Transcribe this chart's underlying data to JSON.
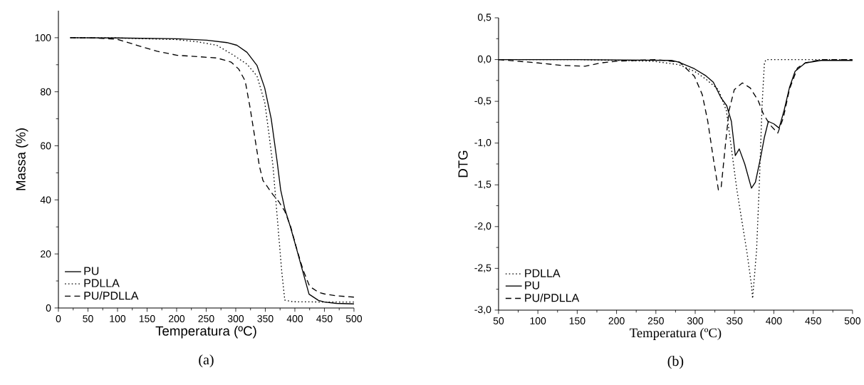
{
  "chart_data": [
    {
      "type": "line",
      "xlabel": "Temperatura (ºC)",
      "ylabel": "Massa (%)",
      "annotations": [
        "(a)"
      ],
      "xlim": [
        0,
        500
      ],
      "ylim": [
        0,
        110
      ],
      "xticks": [
        0,
        50,
        100,
        150,
        200,
        250,
        300,
        350,
        400,
        450,
        500
      ],
      "yticks": [
        0,
        20,
        40,
        60,
        80,
        100
      ],
      "legend": "bottom left",
      "marker": "none",
      "series": [
        {
          "name": "PU",
          "color": "#000000",
          "line_style": "solid",
          "x": [
            20,
            100,
            200,
            251,
            285,
            302,
            319,
            336,
            349,
            360,
            370,
            376,
            383,
            393,
            403,
            414,
            424,
            440,
            450,
            470,
            500
          ],
          "values": [
            100,
            99.9,
            99.6,
            99.1,
            98.2,
            97.2,
            94.6,
            89.7,
            81.4,
            70,
            54.2,
            43.7,
            36.7,
            29.6,
            21.8,
            13,
            5.1,
            2.8,
            2.2,
            1.7,
            1.5
          ]
        },
        {
          "name": "PDLLA",
          "color": "#000000",
          "line_style": "dotted",
          "x": [
            20,
            100,
            200,
            235,
            268,
            295,
            319,
            336,
            349,
            356,
            363,
            368,
            373,
            378,
            383,
            397,
            450,
            500
          ],
          "values": [
            100,
            99.9,
            99.3,
            98.5,
            97.2,
            93.7,
            90.2,
            85.8,
            76.1,
            64.7,
            52.5,
            39.3,
            26.1,
            13,
            2.9,
            2.3,
            2.2,
            2.2
          ]
        },
        {
          "name": "PU/PDLLA",
          "color": "#000000",
          "line_style": "dashed",
          "x": [
            20,
            60,
            100,
            133,
            167,
            201,
            235,
            268,
            292,
            305,
            316,
            324,
            333,
            340,
            346,
            363,
            373,
            383,
            393,
            403,
            414,
            425,
            440,
            450,
            470,
            500
          ],
          "values": [
            100,
            99.9,
            99.4,
            97.2,
            95,
            93.5,
            93,
            92.5,
            91,
            88.4,
            84,
            74.4,
            62.1,
            52.5,
            47.2,
            41.9,
            39.3,
            35.8,
            30,
            22,
            14,
            8,
            5.8,
            5.2,
            4.5,
            4
          ]
        }
      ]
    },
    {
      "type": "line",
      "xlabel": "Temperatura (ºC)",
      "ylabel": "DTG",
      "annotations": [
        "(b)"
      ],
      "xlim": [
        50,
        500
      ],
      "ylim": [
        -3.0,
        0.5
      ],
      "xticks": [
        50,
        100,
        150,
        200,
        250,
        300,
        350,
        400,
        450,
        500
      ],
      "yticks": [
        {
          "value": -3.0,
          "label": "-3,0"
        },
        {
          "value": -2.5,
          "label": "-2,5"
        },
        {
          "value": -2.0,
          "label": "-2,0"
        },
        {
          "value": -1.5,
          "label": "-1,5"
        },
        {
          "value": -1.0,
          "label": "-1,0"
        },
        {
          "value": -0.5,
          "label": "-0,5"
        },
        {
          "value": 0.0,
          "label": "0,0"
        },
        {
          "value": 0.5,
          "label": "0,5"
        }
      ],
      "legend": "bottom left",
      "marker": "none",
      "series": [
        {
          "name": "PDLLA",
          "color": "#000000",
          "line_style": "dotted",
          "x": [
            50,
            150,
            200,
            246,
            279,
            299,
            313,
            329.5,
            339.6,
            346,
            353,
            360,
            366,
            371.5,
            373,
            378,
            381.5,
            385,
            388,
            390,
            450,
            500
          ],
          "values": [
            0,
            0,
            -0.01,
            -0.02,
            -0.06,
            -0.14,
            -0.23,
            -0.36,
            -0.61,
            -1.06,
            -1.56,
            -1.97,
            -2.32,
            -2.7,
            -2.86,
            -2.29,
            -1.5,
            -0.55,
            -0.04,
            0,
            0,
            0
          ]
        },
        {
          "name": "PU",
          "color": "#000000",
          "line_style": "solid",
          "x": [
            50,
            150,
            270,
            279,
            299,
            313,
            323,
            333,
            340,
            346,
            351,
            356,
            363,
            371.5,
            376.5,
            383,
            388,
            393,
            400,
            406.7,
            413,
            420,
            427,
            440,
            460,
            500
          ],
          "values": [
            0,
            0,
            -0.01,
            -0.03,
            -0.11,
            -0.19,
            -0.27,
            -0.46,
            -0.55,
            -0.74,
            -1.15,
            -1.07,
            -1.25,
            -1.54,
            -1.47,
            -1.18,
            -0.93,
            -0.74,
            -0.77,
            -0.82,
            -0.61,
            -0.33,
            -0.14,
            -0.04,
            -0.01,
            -0.01
          ]
        },
        {
          "name": "PU/PDLLA",
          "color": "#000000",
          "line_style": "dashed",
          "x": [
            50,
            100,
            130,
            160,
            180,
            200,
            250,
            280,
            299,
            309,
            316,
            323,
            329.5,
            333,
            338,
            343,
            349.7,
            360,
            370,
            380,
            386.6,
            395,
            405,
            412,
            420,
            430,
            440,
            460,
            500
          ],
          "values": [
            0,
            -0.04,
            -0.07,
            -0.08,
            -0.04,
            -0.02,
            0,
            -0.03,
            -0.2,
            -0.42,
            -0.74,
            -1.18,
            -1.56,
            -1.53,
            -1.06,
            -0.61,
            -0.36,
            -0.28,
            -0.34,
            -0.49,
            -0.65,
            -0.78,
            -0.88,
            -0.7,
            -0.35,
            -0.1,
            -0.04,
            0,
            0
          ]
        }
      ]
    }
  ]
}
